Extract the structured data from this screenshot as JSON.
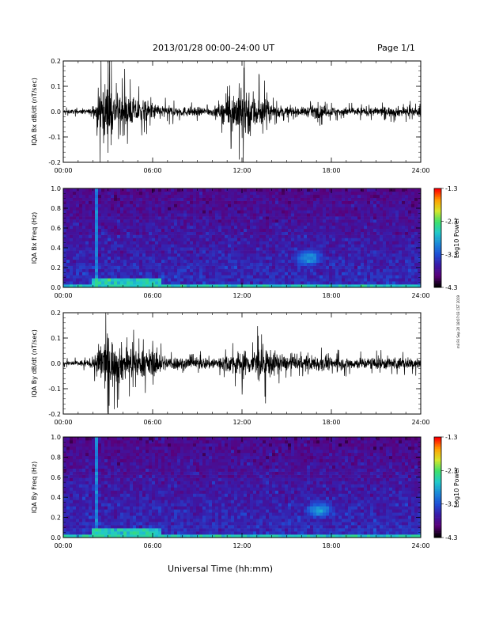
{
  "header": {
    "title": "2013/01/28  00:00–24:00 UT",
    "page": "Page 1/1"
  },
  "x_axis_label": "Universal Time (hh:mm)",
  "side_note": "mil Fri Sep 20 18:07:03 CST 2019",
  "colors": {
    "trace": "#000000",
    "colormap": [
      "#000000",
      "#5a007a",
      "#3a1aa8",
      "#1d4fd6",
      "#1c8ad8",
      "#20c9c9",
      "#3de06a",
      "#d6e62a",
      "#ffa000",
      "#ff0000"
    ]
  },
  "chart_data": [
    {
      "type": "line",
      "name": "bx-waveform",
      "ylabel": "IQA Bx dB/dt (nT/sec)",
      "xlim": [
        "00:00",
        "24:00"
      ],
      "ylim": [
        -0.2,
        0.2
      ],
      "x_ticks": [
        "00:00",
        "06:00",
        "12:00",
        "18:00",
        "24:00"
      ],
      "y_ticks": [
        "-0.2",
        "-0.1",
        "0.0",
        "0.1",
        "0.2"
      ],
      "x_hours": [
        0,
        1,
        2,
        2.2,
        2.5,
        3,
        3.5,
        4,
        4.5,
        5,
        5.5,
        6,
        6.5,
        7,
        8,
        9,
        10,
        10.5,
        11,
        11.5,
        12,
        12.5,
        13,
        13.5,
        14,
        15,
        16,
        17,
        18,
        19,
        20,
        21,
        22,
        23,
        24
      ],
      "amplitude": [
        0.015,
        0.015,
        0.02,
        0.08,
        0.2,
        0.2,
        0.12,
        0.14,
        0.1,
        0.09,
        0.08,
        0.06,
        0.05,
        0.04,
        0.035,
        0.03,
        0.03,
        0.05,
        0.1,
        0.14,
        0.2,
        0.18,
        0.12,
        0.1,
        0.05,
        0.035,
        0.03,
        0.045,
        0.035,
        0.03,
        0.03,
        0.03,
        0.035,
        0.035,
        0.03
      ]
    },
    {
      "type": "heatmap",
      "name": "bx-spectrogram",
      "ylabel": "IQA Bx Freq (Hz)",
      "xlim": [
        "00:00",
        "24:00"
      ],
      "ylim": [
        0.0,
        1.0
      ],
      "x_ticks": [
        "00:00",
        "06:00",
        "12:00",
        "18:00",
        "24:00"
      ],
      "y_ticks": [
        "0.0",
        "0.2",
        "0.4",
        "0.6",
        "0.8",
        "1.0"
      ],
      "colorbar": {
        "label": "Log10 Power",
        "range": [
          -4.3,
          -1.3
        ],
        "ticks": [
          "-1.3",
          "-2.3",
          "-3.3",
          "-4.3"
        ]
      },
      "features": [
        {
          "kind": "broadband-line",
          "t_hours": 2.2,
          "level": -3.0
        },
        {
          "kind": "broadband-line",
          "t_hours": 13.6,
          "level": -3.0
        },
        {
          "kind": "low-freq-band",
          "t_start": 2.0,
          "t_end": 6.5,
          "f_max": 0.08,
          "level": -2.6
        },
        {
          "kind": "emission-blob",
          "t_center": 16.5,
          "f_center": 0.3,
          "level": -2.9
        }
      ]
    },
    {
      "type": "line",
      "name": "by-waveform",
      "ylabel": "IQA By dB/dt (nT/sec)",
      "xlim": [
        "00:00",
        "24:00"
      ],
      "ylim": [
        -0.2,
        0.2
      ],
      "x_ticks": [
        "00:00",
        "06:00",
        "12:00",
        "18:00",
        "24:00"
      ],
      "y_ticks": [
        "-0.2",
        "-0.1",
        "0.0",
        "0.1",
        "0.2"
      ],
      "x_hours": [
        0,
        1,
        2,
        2.2,
        2.5,
        3,
        3.5,
        4,
        4.5,
        5,
        5.5,
        6,
        6.5,
        7,
        8,
        9,
        10,
        10.5,
        11,
        11.5,
        12,
        12.5,
        13,
        13.5,
        14,
        15,
        16,
        17,
        18,
        19,
        20,
        21,
        22,
        23,
        24
      ],
      "amplitude": [
        0.02,
        0.02,
        0.03,
        0.09,
        0.15,
        0.2,
        0.15,
        0.13,
        0.11,
        0.1,
        0.09,
        0.1,
        0.07,
        0.05,
        0.045,
        0.04,
        0.045,
        0.05,
        0.06,
        0.08,
        0.1,
        0.08,
        0.12,
        0.13,
        0.09,
        0.05,
        0.045,
        0.06,
        0.045,
        0.04,
        0.04,
        0.045,
        0.045,
        0.04,
        0.04
      ]
    },
    {
      "type": "heatmap",
      "name": "by-spectrogram",
      "ylabel": "IQA By Freq (Hz)",
      "xlim": [
        "00:00",
        "24:00"
      ],
      "ylim": [
        0.0,
        1.0
      ],
      "x_ticks": [
        "00:00",
        "06:00",
        "12:00",
        "18:00",
        "24:00"
      ],
      "y_ticks": [
        "0.0",
        "0.2",
        "0.4",
        "0.6",
        "0.8",
        "1.0"
      ],
      "colorbar": {
        "label": "Log10 Power",
        "range": [
          -4.3,
          -1.3
        ],
        "ticks": [
          "-1.3",
          "-2.3",
          "-3.3",
          "-4.3"
        ]
      },
      "features": [
        {
          "kind": "broadband-line",
          "t_hours": 2.2,
          "level": -3.0
        },
        {
          "kind": "broadband-line",
          "t_hours": 13.6,
          "level": -3.0
        },
        {
          "kind": "low-freq-band",
          "t_start": 2.0,
          "t_end": 6.5,
          "f_max": 0.08,
          "level": -2.6
        },
        {
          "kind": "emission-blob",
          "t_center": 17.2,
          "f_center": 0.28,
          "level": -2.9
        }
      ]
    }
  ]
}
